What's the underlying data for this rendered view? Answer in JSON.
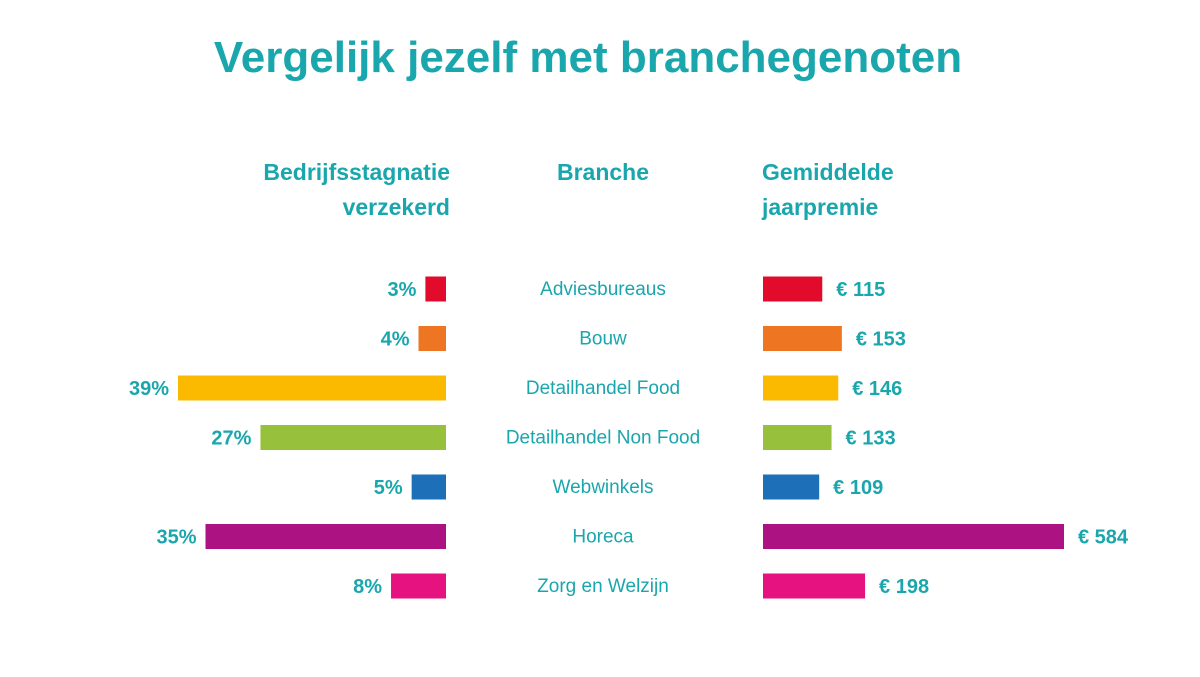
{
  "chart_data": {
    "type": "bar",
    "title": "Vergelijk jezelf met branchegenoten",
    "headers": {
      "left": [
        "Bedrijfsstagnatie",
        "verzekerd"
      ],
      "middle": [
        "Branche"
      ],
      "right": [
        "Gemiddelde",
        "jaarpremie"
      ]
    },
    "categories": [
      "Adviesbureaus",
      "Bouw",
      "Detailhandel Food",
      "Detailhandel Non Food",
      "Webwinkels",
      "Horeca",
      "Zorg en Welzijn"
    ],
    "series": [
      {
        "name": "Bedrijfsstagnatie verzekerd",
        "unit": "%",
        "values": [
          3,
          4,
          39,
          27,
          5,
          35,
          8
        ],
        "labels": [
          "3%",
          "4%",
          "39%",
          "27%",
          "5%",
          "35%",
          "8%"
        ],
        "direction": "left"
      },
      {
        "name": "Gemiddelde jaarpremie",
        "unit": "€",
        "values": [
          115,
          153,
          146,
          133,
          109,
          584,
          198
        ],
        "labels": [
          "€ 115",
          "€ 153",
          "€ 146",
          "€ 133",
          "€ 109",
          "€ 584",
          "€ 198"
        ],
        "direction": "right"
      }
    ],
    "colors": [
      "#e30b2b",
      "#ee7623",
      "#fbba00",
      "#97c13d",
      "#1d6fb8",
      "#ad1283",
      "#e6127f"
    ],
    "text_color": "#1aa6ad"
  }
}
